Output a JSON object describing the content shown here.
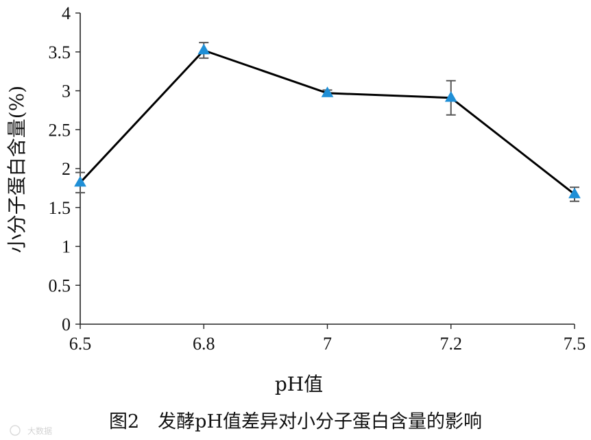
{
  "chart_data": {
    "type": "line",
    "title": "图2　发酵pH值差异对小分子蛋白含量的影响",
    "xlabel": "pH值",
    "ylabel": "小分子蛋白含量(%)",
    "categories": [
      "6.5",
      "6.8",
      "7",
      "7.2",
      "7.5"
    ],
    "series": [
      {
        "values": [
          1.82,
          3.52,
          2.97,
          2.91,
          1.67
        ],
        "error": [
          0.13,
          0.1,
          0.04,
          0.22,
          0.09
        ],
        "color": "#1f8fd6",
        "line_color": "#000000",
        "marker": "triangle"
      }
    ],
    "ylim": [
      0,
      4
    ],
    "yticks": [
      "0",
      "0.5",
      "1",
      "1.5",
      "2",
      "2.5",
      "3",
      "3.5",
      "4"
    ],
    "grid": false,
    "legend": "none"
  },
  "watermark": "大数据"
}
